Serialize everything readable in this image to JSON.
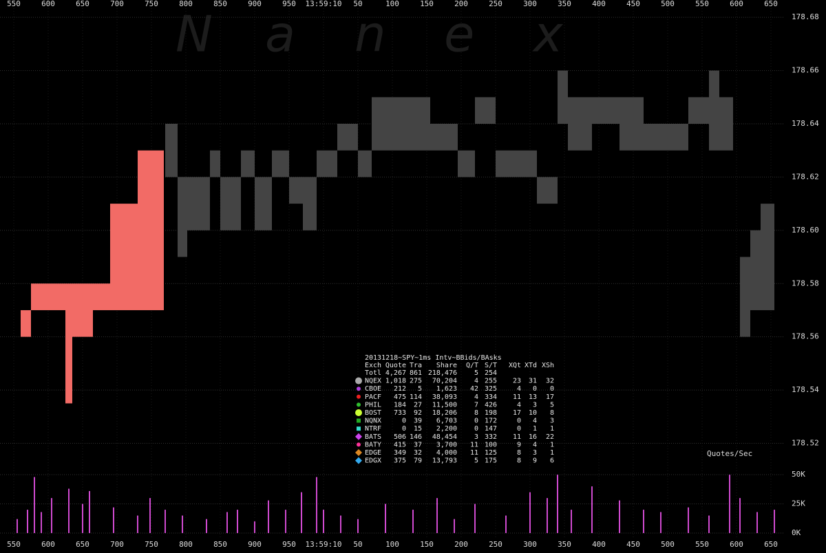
{
  "watermark": [
    "N",
    "a",
    "n",
    "e",
    "x"
  ],
  "chart_data": [
    {
      "type": "range",
      "xlim": [
        530,
        1670
      ],
      "xticks": [
        550,
        600,
        650,
        700,
        750,
        800,
        850,
        900,
        950,
        {
          "value": 1000,
          "label": "13:59:10"
        },
        {
          "value": 1050,
          "label": "50"
        },
        {
          "value": 1100,
          "label": "100"
        },
        {
          "value": 1150,
          "label": "150"
        },
        {
          "value": 1200,
          "label": "200"
        },
        {
          "value": 1250,
          "label": "250"
        },
        {
          "value": 1300,
          "label": "300"
        },
        {
          "value": 1350,
          "label": "350"
        },
        {
          "value": 1400,
          "label": "400"
        },
        {
          "value": 1450,
          "label": "450"
        },
        {
          "value": 1500,
          "label": "500"
        },
        {
          "value": 1550,
          "label": "550"
        },
        {
          "value": 1600,
          "label": "600"
        },
        {
          "value": 1650,
          "label": "650"
        }
      ],
      "ylim": [
        178.516,
        178.6865
      ],
      "yticks": [
        178.52,
        178.54,
        178.56,
        178.58,
        {
          "value": 178.6,
          "label": "178.60"
        },
        178.62,
        178.64,
        178.66,
        178.68
      ],
      "grid": true,
      "segments": [
        {
          "x": [
            560,
            575
          ],
          "low": 178.56,
          "high": 178.57,
          "color": "#f26b66"
        },
        {
          "x": [
            575,
            625
          ],
          "low": 178.57,
          "high": 178.58,
          "color": "#f26b66"
        },
        {
          "x": [
            625,
            635
          ],
          "low": 178.535,
          "high": 178.58,
          "color": "#f26b66"
        },
        {
          "x": [
            635,
            665
          ],
          "low": 178.56,
          "high": 178.58,
          "color": "#f26b66"
        },
        {
          "x": [
            665,
            690
          ],
          "low": 178.57,
          "high": 178.58,
          "color": "#f26b66"
        },
        {
          "x": [
            690,
            730
          ],
          "low": 178.57,
          "high": 178.61,
          "color": "#f26b66"
        },
        {
          "x": [
            730,
            768
          ],
          "low": 178.57,
          "high": 178.63,
          "color": "#f26b66"
        },
        {
          "x": [
            770,
            788
          ],
          "low": 178.62,
          "high": 178.64,
          "color": "#444444"
        },
        {
          "x": [
            788,
            802
          ],
          "low": 178.59,
          "high": 178.62,
          "color": "#444444"
        },
        {
          "x": [
            802,
            835
          ],
          "low": 178.6,
          "high": 178.62,
          "color": "#444444"
        },
        {
          "x": [
            835,
            850
          ],
          "low": 178.62,
          "high": 178.63,
          "color": "#444444"
        },
        {
          "x": [
            850,
            880
          ],
          "low": 178.6,
          "high": 178.62,
          "color": "#444444"
        },
        {
          "x": [
            880,
            900
          ],
          "low": 178.62,
          "high": 178.63,
          "color": "#444444"
        },
        {
          "x": [
            900,
            925
          ],
          "low": 178.6,
          "high": 178.62,
          "color": "#444444"
        },
        {
          "x": [
            925,
            950
          ],
          "low": 178.62,
          "high": 178.63,
          "color": "#444444"
        },
        {
          "x": [
            950,
            970
          ],
          "low": 178.61,
          "high": 178.62,
          "color": "#444444"
        },
        {
          "x": [
            970,
            990
          ],
          "low": 178.6,
          "high": 178.62,
          "color": "#444444"
        },
        {
          "x": [
            990,
            1020
          ],
          "low": 178.62,
          "high": 178.63,
          "color": "#444444"
        },
        {
          "x": [
            1020,
            1050
          ],
          "low": 178.63,
          "high": 178.64,
          "color": "#444444"
        },
        {
          "x": [
            1050,
            1070
          ],
          "low": 178.62,
          "high": 178.63,
          "color": "#444444"
        },
        {
          "x": [
            1070,
            1120
          ],
          "low": 178.63,
          "high": 178.65,
          "color": "#444444"
        },
        {
          "x": [
            1120,
            1155
          ],
          "low": 178.63,
          "high": 178.65,
          "color": "#444444"
        },
        {
          "x": [
            1155,
            1195
          ],
          "low": 178.63,
          "high": 178.64,
          "color": "#444444"
        },
        {
          "x": [
            1195,
            1220
          ],
          "low": 178.62,
          "high": 178.63,
          "color": "#444444"
        },
        {
          "x": [
            1220,
            1250
          ],
          "low": 178.64,
          "high": 178.65,
          "color": "#444444"
        },
        {
          "x": [
            1250,
            1290
          ],
          "low": 178.62,
          "high": 178.63,
          "color": "#444444"
        },
        {
          "x": [
            1290,
            1310
          ],
          "low": 178.62,
          "high": 178.63,
          "color": "#444444"
        },
        {
          "x": [
            1310,
            1340
          ],
          "low": 178.61,
          "high": 178.62,
          "color": "#444444"
        },
        {
          "x": [
            1340,
            1355
          ],
          "low": 178.64,
          "high": 178.66,
          "color": "#444444"
        },
        {
          "x": [
            1355,
            1390
          ],
          "low": 178.63,
          "high": 178.65,
          "color": "#444444"
        },
        {
          "x": [
            1390,
            1430
          ],
          "low": 178.64,
          "high": 178.65,
          "color": "#444444"
        },
        {
          "x": [
            1430,
            1465
          ],
          "low": 178.63,
          "high": 178.65,
          "color": "#444444"
        },
        {
          "x": [
            1465,
            1510
          ],
          "low": 178.63,
          "high": 178.64,
          "color": "#444444"
        },
        {
          "x": [
            1510,
            1530
          ],
          "low": 178.63,
          "high": 178.64,
          "color": "#444444"
        },
        {
          "x": [
            1530,
            1560
          ],
          "low": 178.64,
          "high": 178.65,
          "color": "#444444"
        },
        {
          "x": [
            1560,
            1575
          ],
          "low": 178.63,
          "high": 178.66,
          "color": "#444444"
        },
        {
          "x": [
            1575,
            1595
          ],
          "low": 178.63,
          "high": 178.65,
          "color": "#444444"
        },
        {
          "x": [
            1605,
            1620
          ],
          "low": 178.56,
          "high": 178.59,
          "color": "#444444"
        },
        {
          "x": [
            1620,
            1635
          ],
          "low": 178.57,
          "high": 178.6,
          "color": "#444444"
        },
        {
          "x": [
            1635,
            1655
          ],
          "low": 178.57,
          "high": 178.61,
          "color": "#444444"
        }
      ]
    },
    {
      "type": "spikes",
      "title": "Quotes/Sec",
      "xlim": [
        530,
        1670
      ],
      "ylim": [
        0,
        56000
      ],
      "yticks": [
        {
          "value": 0,
          "label": "0K"
        },
        {
          "value": 25000,
          "label": "25K"
        },
        {
          "value": 50000,
          "label": "50K"
        }
      ],
      "color": "#d04ad0",
      "x": [
        555,
        570,
        580,
        590,
        605,
        630,
        650,
        660,
        695,
        730,
        748,
        770,
        795,
        830,
        860,
        875,
        900,
        920,
        945,
        968,
        990,
        1000,
        1025,
        1050,
        1090,
        1130,
        1165,
        1190,
        1220,
        1265,
        1300,
        1325,
        1340,
        1360,
        1390,
        1430,
        1465,
        1490,
        1530,
        1560,
        1590,
        1605,
        1630,
        1655
      ],
      "values": [
        12000,
        20000,
        48000,
        18000,
        30000,
        38000,
        25000,
        36000,
        22000,
        15000,
        30000,
        20000,
        15000,
        12000,
        18000,
        20000,
        10000,
        28000,
        20000,
        35000,
        48000,
        20000,
        15000,
        12000,
        25000,
        20000,
        30000,
        12000,
        25000,
        15000,
        35000,
        30000,
        50000,
        20000,
        40000,
        28000,
        20000,
        18000,
        22000,
        15000,
        50000,
        30000,
        18000,
        20000
      ]
    }
  ],
  "table": {
    "title": "20131218~SPY~1ms Intv~BBids/BAsks",
    "headers": [
      "Exch",
      "Quote",
      "Tra",
      "Share",
      "Q/T",
      "S/T",
      "XQt",
      "XTd",
      "XSh"
    ],
    "rows": [
      {
        "cells": [
          "Totl",
          "4,267",
          "861",
          "218,476",
          "5",
          "254"
        ]
      },
      {
        "cells": [
          "NQEX",
          "1,018",
          "275",
          "70,204",
          "4",
          "255",
          "23",
          "31",
          "32"
        ],
        "color": "#aaaaaa",
        "shape": "circle"
      },
      {
        "cells": [
          "CBOE",
          "212",
          "5",
          "1,623",
          "42",
          "325",
          "4",
          "0",
          "0"
        ],
        "color": "#b040e0",
        "shape": "dot"
      },
      {
        "cells": [
          "PACF",
          "475",
          "114",
          "38,093",
          "4",
          "334",
          "11",
          "13",
          "17"
        ],
        "color": "#ee2020",
        "shape": "dot"
      },
      {
        "cells": [
          "PHIL",
          "184",
          "27",
          "11,500",
          "7",
          "426",
          "4",
          "3",
          "5"
        ],
        "color": "#30c030",
        "shape": "dot"
      },
      {
        "cells": [
          "BOST",
          "733",
          "92",
          "18,206",
          "8",
          "198",
          "17",
          "10",
          "8"
        ],
        "color": "#ccff33",
        "shape": "circle"
      },
      {
        "cells": [
          "NQNX",
          "0",
          "39",
          "6,703",
          "0",
          "172",
          "0",
          "4",
          "3"
        ],
        "color": "#22aa22",
        "shape": "square"
      },
      {
        "cells": [
          "NTRF",
          "0",
          "15",
          "2,200",
          "0",
          "147",
          "0",
          "1",
          "1"
        ],
        "color": "#33ddcc",
        "shape": "square"
      },
      {
        "cells": [
          "BATS",
          "506",
          "146",
          "48,454",
          "3",
          "332",
          "11",
          "16",
          "22"
        ],
        "color": "#cc44ee",
        "shape": "diamond"
      },
      {
        "cells": [
          "BATY",
          "415",
          "37",
          "3,700",
          "11",
          "100",
          "9",
          "4",
          "1"
        ],
        "color": "#ff3399",
        "shape": "dot"
      },
      {
        "cells": [
          "EDGE",
          "349",
          "32",
          "4,000",
          "11",
          "125",
          "8",
          "3",
          "1"
        ],
        "color": "#dd8822",
        "shape": "diamond"
      },
      {
        "cells": [
          "EDGX",
          "375",
          "79",
          "13,793",
          "5",
          "175",
          "8",
          "9",
          "6"
        ],
        "color": "#33aaee",
        "shape": "diamond"
      }
    ]
  }
}
